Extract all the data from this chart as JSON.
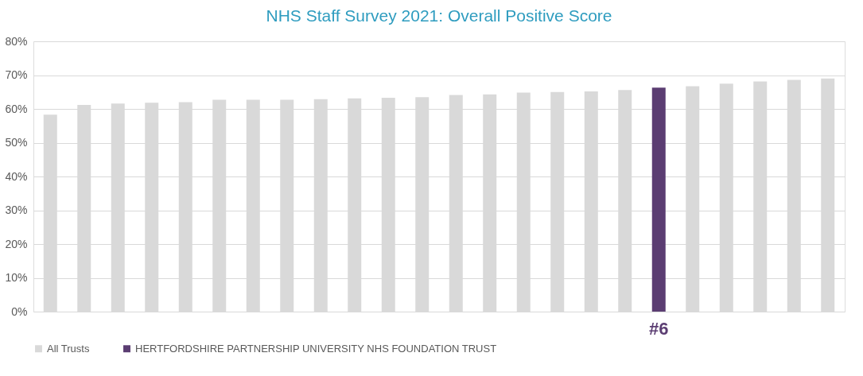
{
  "chart_data": {
    "type": "bar",
    "title": "NHS Staff Survey 2021: Overall Positive Score",
    "categories": [
      null,
      null,
      null,
      null,
      null,
      null,
      null,
      null,
      null,
      null,
      null,
      null,
      null,
      null,
      null,
      null,
      null,
      null,
      null,
      null,
      null,
      null,
      null,
      null
    ],
    "series": [
      {
        "name": "All Trusts",
        "color": "#d9d9d9",
        "values": [
          58.3,
          61.2,
          61.6,
          61.8,
          62.0,
          62.7,
          62.7,
          62.7,
          62.9,
          63.1,
          63.3,
          63.5,
          64.1,
          64.3,
          64.8,
          65.0,
          65.2,
          65.6,
          null,
          66.7,
          67.5,
          68.1,
          68.6,
          69.0
        ]
      },
      {
        "name": "HERTFORDSHIRE PARTNERSHIP UNIVERSITY NHS FOUNDATION TRUST",
        "color": "#5b3d72",
        "values": [
          null,
          null,
          null,
          null,
          null,
          null,
          null,
          null,
          null,
          null,
          null,
          null,
          null,
          null,
          null,
          null,
          null,
          null,
          66.3,
          null,
          null,
          null,
          null,
          null
        ]
      }
    ],
    "annotations": [
      "#6"
    ],
    "ylim": [
      0,
      80
    ],
    "yticks": [
      {
        "value": 0,
        "label": "0%"
      },
      {
        "value": 10,
        "label": "10%"
      },
      {
        "value": 20,
        "label": "20%"
      },
      {
        "value": 30,
        "label": "30%"
      },
      {
        "value": 40,
        "label": "40%"
      },
      {
        "value": 50,
        "label": "50%"
      },
      {
        "value": 60,
        "label": "60%"
      },
      {
        "value": 70,
        "label": "70%"
      },
      {
        "value": 80,
        "label": "80%"
      }
    ],
    "grid": "y",
    "legend": "bottom"
  }
}
